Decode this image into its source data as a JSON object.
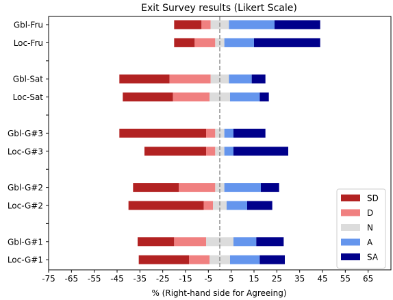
{
  "chart_data": {
    "type": "bar",
    "orientation": "horizontal",
    "stacked": "diverging",
    "title": "Exit Survey results (Likert Scale)",
    "xlabel": "% (Right-hand side for Agreeing)",
    "ylabel": "",
    "xlim": [
      -75,
      75
    ],
    "xticks": [
      -75,
      -65,
      -55,
      -45,
      -35,
      -25,
      -15,
      -5,
      5,
      15,
      25,
      35,
      45,
      55,
      65
    ],
    "center_line": 0,
    "legend_position": "lower-right",
    "categories": [
      "Gbl-Fru",
      "Loc-Fru",
      "Gbl-Sat",
      "Loc-Sat",
      "Gbl-G#3",
      "Loc-G#3",
      "Gbl-G#2",
      "Loc-G#2",
      "Gbl-G#1",
      "Loc-G#1"
    ],
    "category_slots": [
      0,
      1,
      3,
      4,
      6,
      7,
      9,
      10,
      12,
      13
    ],
    "series": [
      {
        "name": "SD",
        "color": "#b22222",
        "values": [
          12,
          9,
          22,
          22,
          38,
          27,
          20,
          33,
          16,
          22
        ]
      },
      {
        "name": "D",
        "color": "#f08080",
        "values": [
          4,
          9,
          18,
          16,
          4,
          4,
          16,
          4,
          14,
          9
        ]
      },
      {
        "name": "N",
        "color": "#dcdcdc",
        "values": [
          8,
          4,
          8,
          9,
          4,
          4,
          4,
          6,
          12,
          9
        ]
      },
      {
        "name": "A",
        "color": "#6495ed",
        "values": [
          20,
          13,
          10,
          13,
          4,
          4,
          16,
          9,
          10,
          13
        ]
      },
      {
        "name": "SA",
        "color": "#00008b",
        "values": [
          20,
          29,
          6,
          4,
          14,
          24,
          8,
          11,
          12,
          11
        ]
      }
    ]
  }
}
